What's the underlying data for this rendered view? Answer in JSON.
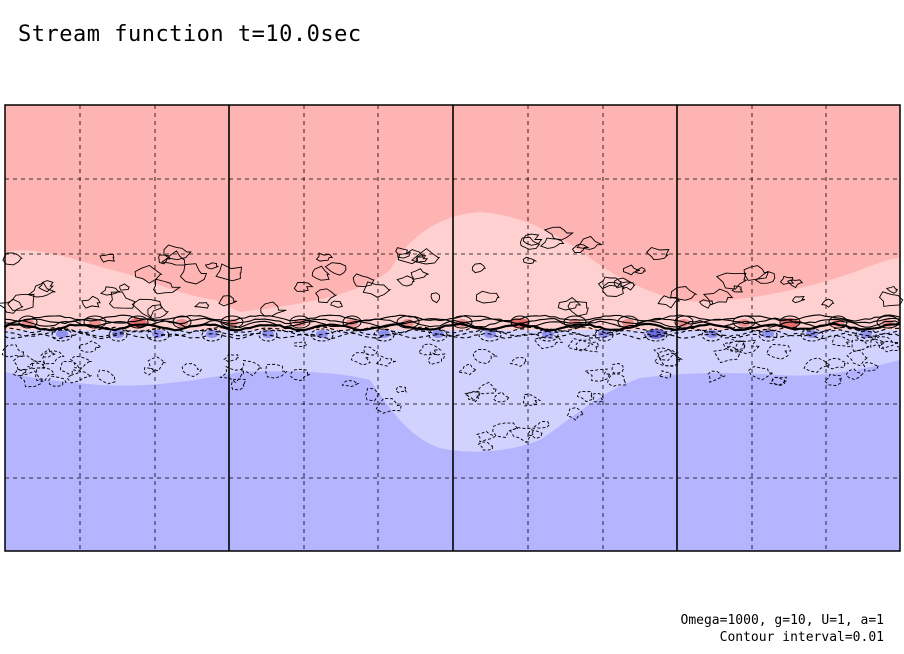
{
  "chart_data": {
    "type": "heatmap",
    "title": "Stream function t=10.0sec",
    "xlabel": "",
    "ylabel": "",
    "grid": true,
    "colors": {
      "positive_strong": "#ffb4b4",
      "positive_weak": "#ffd0d0",
      "positive_core": "#e05a5a",
      "negative_strong": "#b4b4ff",
      "negative_weak": "#d2d2ff",
      "negative_core": "#5a5ae0",
      "contour": "#000000"
    },
    "notes": {
      "parameters": "Omega=1000, g=10, U=1, a=1",
      "contour_interval": "Contour interval=0.01"
    }
  }
}
